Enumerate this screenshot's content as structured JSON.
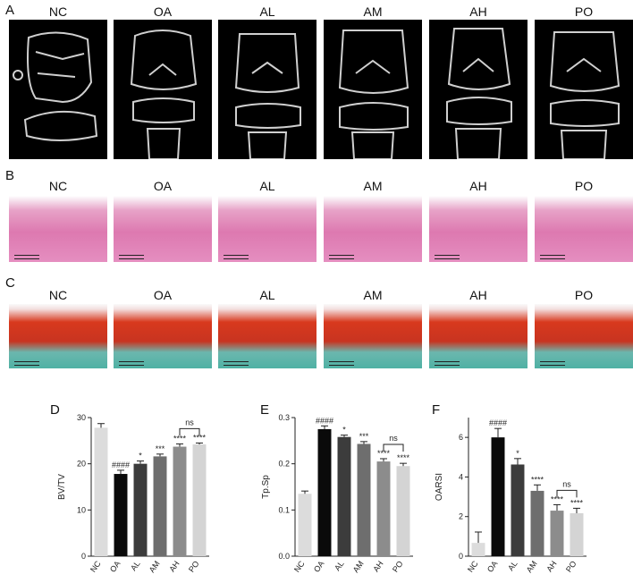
{
  "panel_letters": {
    "A": "A",
    "B": "B",
    "C": "C",
    "D": "D",
    "E": "E",
    "F": "F"
  },
  "groups": [
    "NC",
    "OA",
    "AL",
    "AM",
    "AH",
    "PO"
  ],
  "colors": {
    "NC": "#dcdcdc",
    "OA": "#0a0a0a",
    "AL": "#3c3c3c",
    "AM": "#6e6e6e",
    "AH": "#8c8c8c",
    "PO": "#d4d4d4"
  },
  "chart_data": [
    {
      "type": "bar",
      "panel": "D",
      "categories": [
        "NC",
        "OA",
        "AL",
        "AM",
        "AH",
        "PO"
      ],
      "values": [
        27.8,
        17.8,
        20.0,
        21.6,
        23.7,
        24.2
      ],
      "errors": [
        0.9,
        0.8,
        0.6,
        0.5,
        0.6,
        0.3
      ],
      "annotations": [
        "",
        "####",
        "*",
        "***",
        "****",
        "****"
      ],
      "bracket": {
        "from": "AH",
        "to": "PO",
        "label": "ns"
      },
      "ylabel": "BV/TV",
      "ylim": [
        0,
        30
      ],
      "yticks": [
        "0",
        "10",
        "20",
        "30"
      ]
    },
    {
      "type": "bar",
      "panel": "E",
      "categories": [
        "NC",
        "OA",
        "AL",
        "AM",
        "AH",
        "PO"
      ],
      "values": [
        0.135,
        0.275,
        0.258,
        0.243,
        0.205,
        0.195
      ],
      "errors": [
        0.006,
        0.007,
        0.004,
        0.005,
        0.006,
        0.006
      ],
      "annotations": [
        "",
        "####",
        "*",
        "***",
        "****",
        "****"
      ],
      "bracket": {
        "from": "AH",
        "to": "PO",
        "label": "ns"
      },
      "ylabel": "Tp.Sp",
      "ylim": [
        0,
        0.3
      ],
      "yticks": [
        "0.0",
        "0.1",
        "0.2",
        "0.3"
      ]
    },
    {
      "type": "bar",
      "panel": "F",
      "categories": [
        "NC",
        "OA",
        "AL",
        "AM",
        "AH",
        "PO"
      ],
      "values": [
        0.67,
        6.0,
        4.63,
        3.3,
        2.3,
        2.17
      ],
      "errors": [
        0.55,
        0.45,
        0.3,
        0.3,
        0.3,
        0.25
      ],
      "annotations": [
        "",
        "####",
        "*",
        "****",
        "****",
        "****"
      ],
      "bracket": {
        "from": "AH",
        "to": "PO",
        "label": "ns"
      },
      "ylabel": "OARSI",
      "ylim": [
        0,
        7
      ],
      "yticks": [
        "0",
        "2",
        "4",
        "6"
      ]
    }
  ]
}
